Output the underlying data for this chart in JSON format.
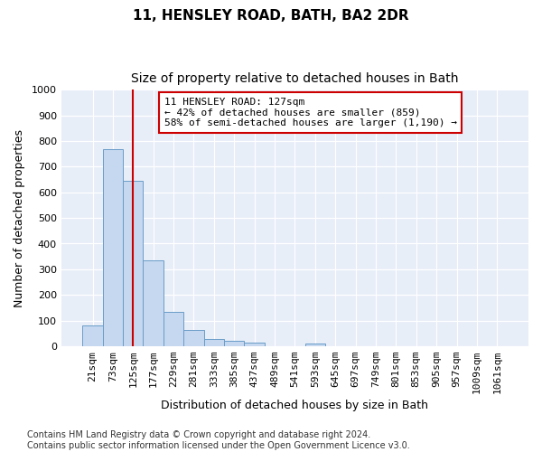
{
  "title": "11, HENSLEY ROAD, BATH, BA2 2DR",
  "subtitle": "Size of property relative to detached houses in Bath",
  "xlabel": "Distribution of detached houses by size in Bath",
  "ylabel": "Number of detached properties",
  "bin_labels": [
    "21sqm",
    "73sqm",
    "125sqm",
    "177sqm",
    "229sqm",
    "281sqm",
    "333sqm",
    "385sqm",
    "437sqm",
    "489sqm",
    "541sqm",
    "593sqm",
    "645sqm",
    "697sqm",
    "749sqm",
    "801sqm",
    "853sqm",
    "905sqm",
    "957sqm",
    "1009sqm",
    "1061sqm"
  ],
  "bar_heights": [
    82,
    770,
    645,
    335,
    135,
    62,
    27,
    20,
    15,
    0,
    0,
    10,
    0,
    0,
    0,
    0,
    0,
    0,
    0,
    0,
    0
  ],
  "bar_color": "#c5d8ef",
  "bar_edge_color": "#6a9cc8",
  "vline_bin_index": 2.0,
  "annotation_text": "11 HENSLEY ROAD: 127sqm\n← 42% of detached houses are smaller (859)\n58% of semi-detached houses are larger (1,190) →",
  "annotation_box_facecolor": "#ffffff",
  "annotation_box_edgecolor": "#cc0000",
  "vline_color": "#cc0000",
  "ylim": [
    0,
    1000
  ],
  "yticks": [
    0,
    100,
    200,
    300,
    400,
    500,
    600,
    700,
    800,
    900,
    1000
  ],
  "fig_facecolor": "#ffffff",
  "ax_facecolor": "#e8eef8",
  "grid_color": "#ffffff",
  "title_fontsize": 11,
  "subtitle_fontsize": 10,
  "xlabel_fontsize": 9,
  "ylabel_fontsize": 9,
  "tick_fontsize": 8,
  "annotation_fontsize": 8,
  "footer_fontsize": 7,
  "footer_text": "Contains HM Land Registry data © Crown copyright and database right 2024.\nContains public sector information licensed under the Open Government Licence v3.0."
}
